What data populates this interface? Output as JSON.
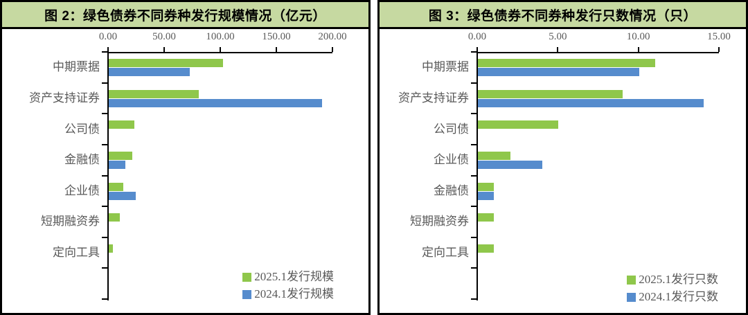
{
  "colors": {
    "series_green": "#8FC74B",
    "series_blue": "#568CCD",
    "header_bg": "#C6D9A1",
    "axis_black": "#000000",
    "label_gray": "#595959"
  },
  "panels": [
    {
      "title": "图 2：绿色债券不同券种发行规模情况（亿元）"
    },
    {
      "title": "图 3：绿色债券不同券种发行只数情况（只）"
    }
  ],
  "chart_data": [
    {
      "type": "bar",
      "orientation": "horizontal",
      "title": "图 2：绿色债券不同券种发行规模情况（亿元）",
      "categories": [
        "中期票据",
        "资产支持证券",
        "公司债",
        "金融债",
        "企业债",
        "短期融资券",
        "定向工具"
      ],
      "series": [
        {
          "name": "2025.1发行规模",
          "color_key": "series_green",
          "values": [
            102,
            80,
            23,
            21,
            13,
            10,
            3.5
          ]
        },
        {
          "name": "2024.1发行规模",
          "color_key": "series_blue",
          "values": [
            72,
            190,
            0,
            15,
            24,
            0,
            0
          ]
        }
      ],
      "xlim": [
        0,
        200
      ],
      "tick_labels": [
        "0.00",
        "50.00",
        "100.00",
        "150.00",
        "200.00"
      ],
      "grid": false,
      "legend_position": "inside-bottom-right"
    },
    {
      "type": "bar",
      "orientation": "horizontal",
      "title": "图 3：绿色债券不同券种发行只数情况（只）",
      "categories": [
        "中期票据",
        "资产支持证券",
        "公司债",
        "企业债",
        "金融债",
        "短期融资券",
        "定向工具"
      ],
      "series": [
        {
          "name": "2025.1发行只数",
          "color_key": "series_green",
          "values": [
            11,
            9,
            5,
            2,
            1,
            1,
            1
          ]
        },
        {
          "name": "2024.1发行只数",
          "color_key": "series_blue",
          "values": [
            10,
            14,
            0,
            4,
            1,
            0,
            0
          ]
        }
      ],
      "xlim": [
        0,
        15
      ],
      "tick_labels": [
        "0.00",
        "5.00",
        "10.00",
        "15.00"
      ],
      "grid": false,
      "legend_position": "inside-bottom-right"
    }
  ]
}
